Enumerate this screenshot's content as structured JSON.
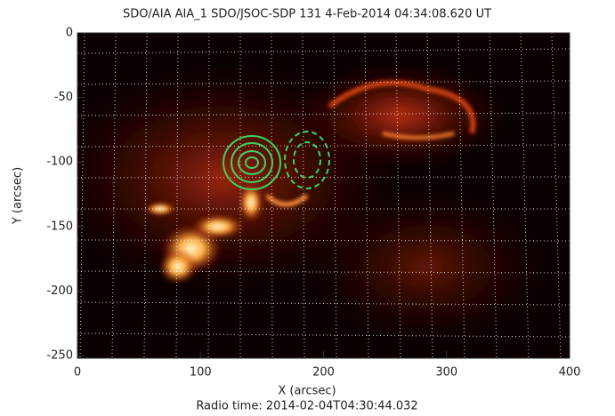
{
  "chart_data": {
    "type": "image",
    "title": "SDO/AIA AIA_1 SDO/JSOC-SDP 131  4-Feb-2014 04:34:08.620 UT",
    "x_label": "X (arcsec)",
    "y_label": "Y (arcsec)",
    "annotation": "Radio time: 2014-02-04T04:30:44.032",
    "xlim": [
      0,
      400
    ],
    "xticks": [
      0,
      100,
      200,
      300,
      400
    ],
    "ylim": [
      -252,
      0
    ],
    "yticks": [
      0,
      -50,
      -100,
      -150,
      -200,
      -250
    ]
  }
}
